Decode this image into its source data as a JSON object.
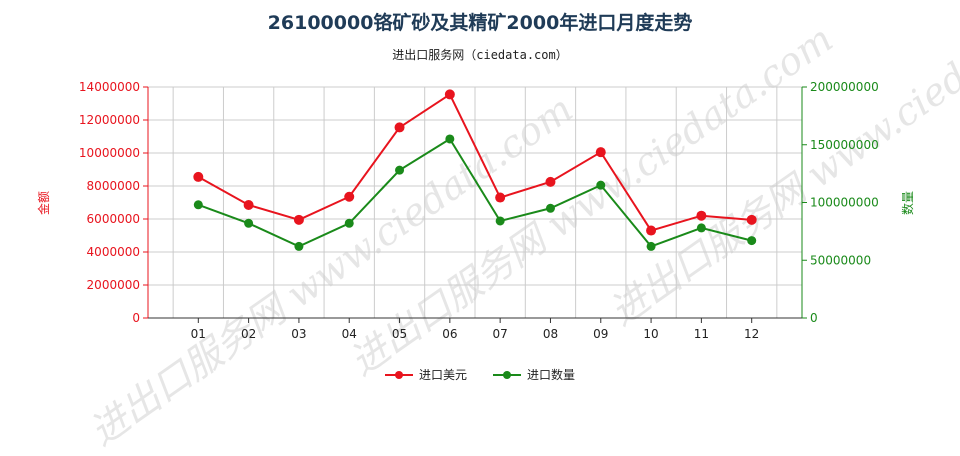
{
  "title": "26100000铬矿砂及其精矿2000年进口月度走势",
  "subtitle": "进出口服务网（ciedata.com）",
  "watermark": "进出口服务网 www.ciedata.com",
  "colors": {
    "usd": "#e8141e",
    "qty": "#1a8a1a",
    "grid": "#cccccc",
    "axis": "#333333"
  },
  "chart_data": {
    "type": "line",
    "categories": [
      "01",
      "02",
      "03",
      "04",
      "05",
      "06",
      "07",
      "08",
      "09",
      "10",
      "11",
      "12"
    ],
    "series": [
      {
        "name": "进口美元",
        "axis": "left",
        "values": [
          8550000,
          6850000,
          5950000,
          7350000,
          11550000,
          13550000,
          7300000,
          8250000,
          10050000,
          5300000,
          6200000,
          5950000
        ]
      },
      {
        "name": "进口数量",
        "axis": "right",
        "values": [
          98000000,
          82000000,
          62000000,
          82000000,
          128000000,
          155000000,
          84000000,
          95000000,
          115000000,
          62000000,
          78000000,
          67000000
        ]
      }
    ],
    "ylabel_left": "金额",
    "ylabel_right": "数量",
    "ylim_left": [
      0,
      14000000
    ],
    "ylim_right": [
      0,
      200000000
    ],
    "yticks_left": [
      "0",
      "2000000",
      "4000000",
      "6000000",
      "8000000",
      "10000000",
      "12000000",
      "14000000"
    ],
    "yticks_right": [
      "0",
      "50000000",
      "100000000",
      "150000000",
      "200000000"
    ],
    "grid": true,
    "legend": "bottom-center"
  }
}
